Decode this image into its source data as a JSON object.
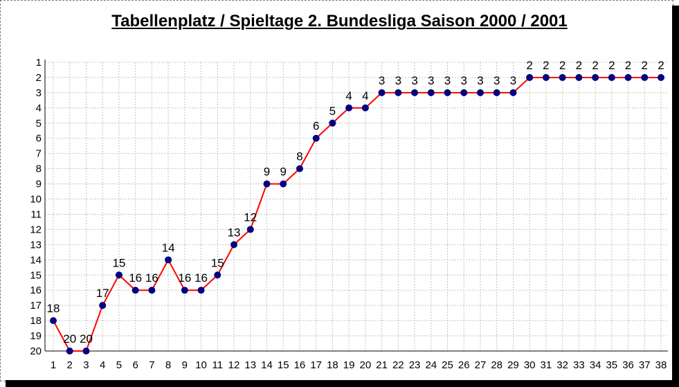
{
  "chart_data": {
    "type": "line",
    "title": "Tabellenplatz / Spieltage 2. Bundesliga Saison 2000 / 2001",
    "xlabel": "",
    "ylabel": "",
    "x": [
      1,
      2,
      3,
      4,
      5,
      6,
      7,
      8,
      9,
      10,
      11,
      12,
      13,
      14,
      15,
      16,
      17,
      18,
      19,
      20,
      21,
      22,
      23,
      24,
      25,
      26,
      27,
      28,
      29,
      30,
      31,
      32,
      33,
      34,
      35,
      36,
      37,
      38
    ],
    "series": [
      {
        "values": [
          18,
          20,
          20,
          17,
          15,
          16,
          16,
          14,
          16,
          16,
          15,
          13,
          12,
          9,
          9,
          8,
          6,
          5,
          4,
          4,
          3,
          3,
          3,
          3,
          3,
          3,
          3,
          3,
          3,
          2,
          2,
          2,
          2,
          2,
          2,
          2,
          2,
          2
        ]
      }
    ],
    "xlim": [
      1,
      38
    ],
    "ylim": [
      1,
      20
    ],
    "y_inverted": true,
    "grid": true,
    "legend": "none",
    "colors": {
      "line": "#ff0000",
      "marker": "#000080",
      "grid": "#c0c0c0"
    }
  }
}
